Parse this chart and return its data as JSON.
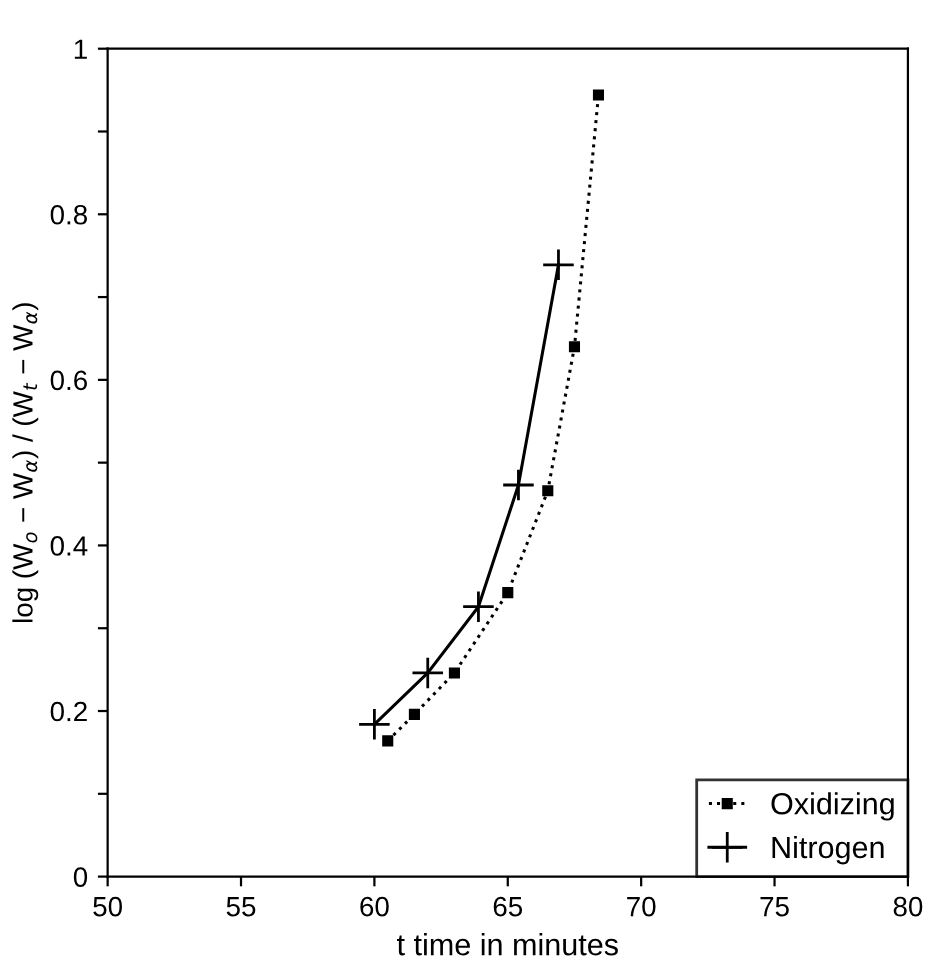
{
  "chart_data": {
    "type": "line",
    "xlabel": "t time in minutes",
    "ylabel": "log (W$_{o}$ − W$_{α}$) / (W$_{t}$ − W$_{α}$)",
    "xlim": [
      50,
      80
    ],
    "xticks": [
      50,
      55,
      60,
      65,
      70,
      75,
      80
    ],
    "ylim": [
      0,
      1
    ],
    "yticks": [
      0,
      {
        "value": 0.1,
        "label": null
      },
      0.2,
      {
        "value": 0.3,
        "label": null
      },
      0.4,
      {
        "value": 0.5,
        "label": null
      },
      0.6,
      {
        "value": 0.7,
        "label": null
      },
      0.8,
      {
        "value": 0.9,
        "label": null
      },
      1
    ],
    "grid": false,
    "legend": "bottom right",
    "series": [
      {
        "name": "Oxidizing",
        "color": "#000000",
        "marker": "square",
        "line_style": "dotted",
        "x": [
          60.5,
          61.5,
          63.0,
          65.0,
          66.5,
          67.5,
          68.4
        ],
        "values": [
          0.164,
          0.196,
          0.246,
          0.343,
          0.466,
          0.64,
          0.944
        ]
      },
      {
        "name": "Nitrogen",
        "color": "#000000",
        "marker": "cross",
        "line_style": "solid",
        "x": [
          60.0,
          62.0,
          63.9,
          65.4,
          66.9
        ],
        "values": [
          0.184,
          0.246,
          0.326,
          0.473,
          0.739
        ]
      }
    ]
  }
}
